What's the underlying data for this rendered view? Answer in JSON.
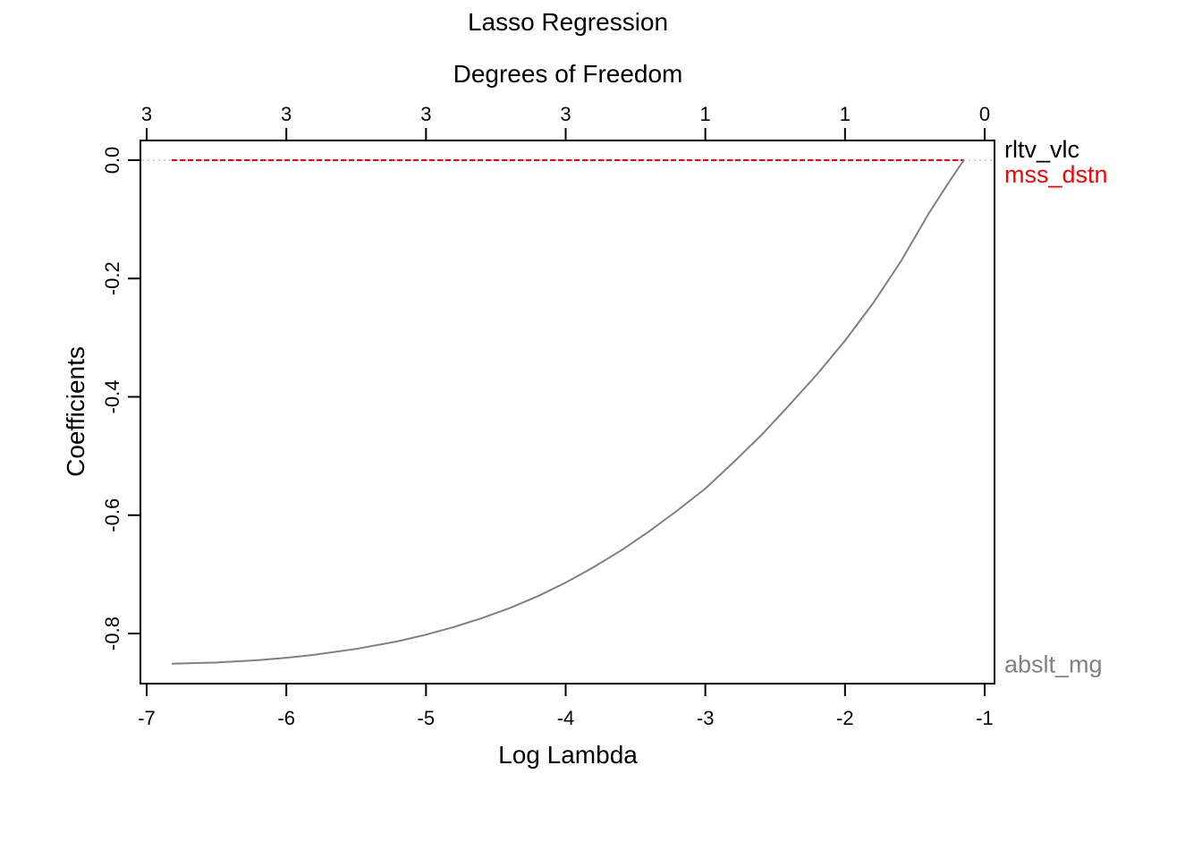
{
  "chart_data": {
    "type": "line",
    "title": "Lasso Regression",
    "top_axis_label": "Degrees of Freedom",
    "xlabel": "Log Lambda",
    "ylabel": "Coefficients",
    "xlim": [
      -7,
      -1
    ],
    "ylim": [
      -0.85,
      0.0
    ],
    "x_ticks": [
      "-7",
      "-6",
      "-5",
      "-4",
      "-3",
      "-2",
      "-1"
    ],
    "x_tick_values": [
      -7,
      -6,
      -5,
      -4,
      -3,
      -2,
      -1
    ],
    "y_ticks": [
      "0.0",
      "-0.2",
      "-0.4",
      "-0.6",
      "-0.8"
    ],
    "y_tick_values": [
      0.0,
      -0.2,
      -0.4,
      -0.6,
      -0.8
    ],
    "top_ticks": [
      "3",
      "3",
      "3",
      "3",
      "1",
      "1",
      "0"
    ],
    "top_tick_positions": [
      -7,
      -6,
      -5,
      -4,
      -3,
      -2,
      -1
    ],
    "zero_reference_line": true,
    "grid": false,
    "series": [
      {
        "name": "rltv_vlc",
        "color": "#000000",
        "style": "dashed",
        "x": [
          -6.82,
          -1.15
        ],
        "y": [
          0.0,
          0.0
        ]
      },
      {
        "name": "mss_dstn",
        "color": "#ff0000",
        "style": "dashed",
        "x": [
          -6.82,
          -1.15
        ],
        "y": [
          0.0,
          0.0
        ]
      },
      {
        "name": "abslt_mg",
        "color": "#808080",
        "style": "solid",
        "x": [
          -6.82,
          -6.5,
          -6.2,
          -6.0,
          -5.8,
          -5.5,
          -5.2,
          -5.0,
          -4.8,
          -4.6,
          -4.4,
          -4.2,
          -4.0,
          -3.8,
          -3.6,
          -3.4,
          -3.2,
          -3.0,
          -2.8,
          -2.6,
          -2.4,
          -2.2,
          -2.0,
          -1.8,
          -1.6,
          -1.4,
          -1.25,
          -1.15
        ],
        "y": [
          -0.851,
          -0.849,
          -0.845,
          -0.841,
          -0.836,
          -0.826,
          -0.813,
          -0.802,
          -0.789,
          -0.774,
          -0.757,
          -0.737,
          -0.714,
          -0.688,
          -0.659,
          -0.627,
          -0.592,
          -0.555,
          -0.511,
          -0.465,
          -0.414,
          -0.362,
          -0.305,
          -0.242,
          -0.171,
          -0.09,
          -0.035,
          0.0
        ]
      }
    ]
  }
}
